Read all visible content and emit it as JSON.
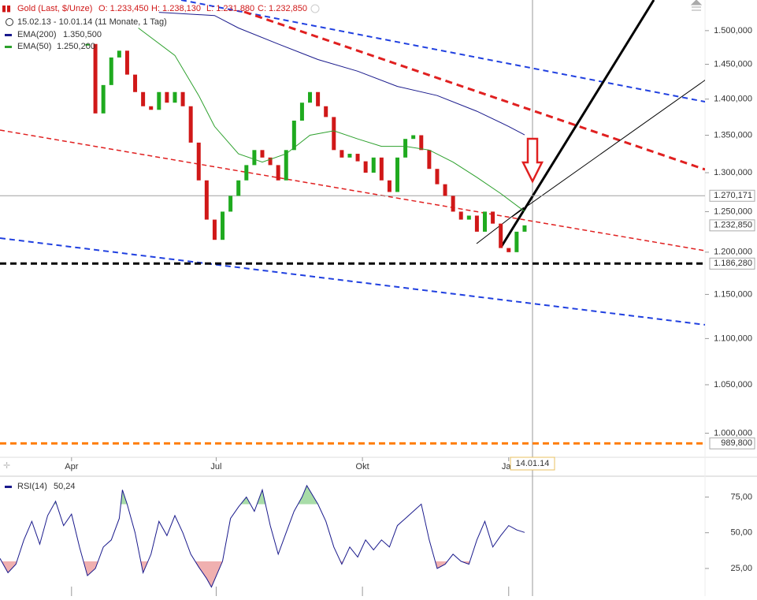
{
  "chart_data": [
    {
      "type": "line",
      "ohlc_labels": [
        "O: 1.233,450",
        "H: 1.238,130",
        "L: 1.231,880",
        "C: 1.232,850"
      ],
      "period": "15.02.13 - 10.01.14 (11 Monate, 1 Tag)",
      "log_scale": true,
      "xlim": [
        0,
        443.5
      ],
      "xticks": [
        {
          "value": 45,
          "label": "Apr"
        },
        {
          "value": 136,
          "label": "Jul"
        },
        {
          "value": 228,
          "label": "Okt"
        },
        {
          "value": 320,
          "label": "Jan"
        }
      ],
      "ylim": [
        976,
        1547
      ],
      "yticks": [
        {
          "value": 1000,
          "label": "1.000,000"
        },
        {
          "value": 1050,
          "label": "1.050,000"
        },
        {
          "value": 1100,
          "label": "1.100,000"
        },
        {
          "value": 1150,
          "label": "1.150,000"
        },
        {
          "value": 1200,
          "label": "1.200,000"
        },
        {
          "value": 1250,
          "label": "1.250,000"
        },
        {
          "value": 1300,
          "label": "1.300,000"
        },
        {
          "value": 1350,
          "label": "1.350,000"
        },
        {
          "value": 1400,
          "label": "1.400,000"
        },
        {
          "value": 1450,
          "label": "1.450,000"
        },
        {
          "value": 1500,
          "label": "1.500,000"
        }
      ],
      "series": [
        {
          "name": "Gold (Last, $/Unze)",
          "color": "#d01818",
          "up_color": "#1faa1f",
          "x": [
            55,
            60,
            65,
            70,
            75,
            80,
            85,
            90,
            95,
            100,
            105,
            110,
            115,
            120,
            125,
            130,
            135,
            140,
            145,
            150,
            155,
            160,
            165,
            170,
            175,
            180,
            185,
            190,
            195,
            200,
            205,
            210,
            215,
            220,
            225,
            230,
            235,
            240,
            245,
            250,
            255,
            260,
            265,
            270,
            275,
            280,
            285,
            290,
            295,
            300,
            305,
            310,
            315,
            320,
            325,
            330
          ],
          "values": [
            1480,
            1380,
            1420,
            1460,
            1470,
            1435,
            1410,
            1390,
            1385,
            1410,
            1395,
            1410,
            1390,
            1340,
            1290,
            1240,
            1215,
            1250,
            1270,
            1290,
            1310,
            1330,
            1320,
            1310,
            1290,
            1330,
            1370,
            1395,
            1410,
            1390,
            1375,
            1330,
            1320,
            1325,
            1315,
            1300,
            1320,
            1290,
            1275,
            1320,
            1345,
            1350,
            1330,
            1305,
            1285,
            1270,
            1250,
            1240,
            1245,
            1225,
            1250,
            1235,
            1205,
            1200,
            1225,
            1232.85
          ]
        },
        {
          "name": "EMA(200)",
          "color": "#1a1a8c",
          "value_label": "1.350,500",
          "x": [
            100,
            135,
            150,
            175,
            200,
            225,
            250,
            275,
            300,
            320,
            330
          ],
          "values": [
            1528,
            1523,
            1504,
            1480,
            1457,
            1440,
            1418,
            1405,
            1383,
            1362,
            1350.5
          ]
        },
        {
          "name": "EMA(50)",
          "color": "#2ca02c",
          "value_label": "1.250,200",
          "x": [
            87,
            110,
            125,
            135,
            150,
            165,
            180,
            195,
            210,
            225,
            240,
            255,
            270,
            285,
            300,
            315,
            330
          ],
          "values": [
            1504,
            1463,
            1405,
            1362,
            1325,
            1314,
            1325,
            1350,
            1356,
            1345,
            1335,
            1335,
            1330,
            1314,
            1294,
            1273,
            1250.2
          ]
        }
      ],
      "levels": [
        {
          "value": 1270.171,
          "label": "1.270,171",
          "color": "#a0a0a0",
          "style": "solid"
        },
        {
          "value": 1232.85,
          "label": "1.232,850",
          "color": "#a0a0a0",
          "style": "none"
        },
        {
          "value": 1186.28,
          "label": "1.186,280",
          "color": "#000000",
          "style": "dashed"
        },
        {
          "value": 989.8,
          "label": "989,800",
          "color": "#ff7f0e",
          "style": "dashed"
        }
      ],
      "cursor_label": "14.01.14"
    },
    {
      "type": "line",
      "ylim": [
        9,
        89
      ],
      "yticks": [
        {
          "value": 25,
          "label": "25,00"
        },
        {
          "value": 50,
          "label": "50,00"
        },
        {
          "value": 75,
          "label": "75,00"
        }
      ],
      "overbought": 70,
      "oversold": 30,
      "series": [
        {
          "name": "RSI(14)",
          "color": "#1a1a8c",
          "value_label": "50,24",
          "overbought_color": "#a8dca8",
          "oversold_color": "#f0b0b0",
          "x": [
            0,
            5,
            10,
            15,
            20,
            25,
            30,
            35,
            40,
            45,
            50,
            55,
            60,
            65,
            70,
            75,
            77,
            80,
            85,
            90,
            95,
            100,
            105,
            110,
            115,
            120,
            125,
            130,
            133,
            140,
            145,
            150,
            155,
            160,
            165,
            170,
            175,
            180,
            185,
            190,
            193,
            200,
            205,
            210,
            215,
            220,
            225,
            230,
            235,
            240,
            245,
            250,
            255,
            260,
            265,
            270,
            275,
            280,
            285,
            290,
            295,
            300,
            305,
            310,
            315,
            320,
            325,
            330
          ],
          "values": [
            32,
            22,
            28,
            45,
            58,
            42,
            62,
            72,
            55,
            63,
            40,
            20,
            25,
            40,
            45,
            60,
            80,
            70,
            50,
            22,
            35,
            58,
            48,
            62,
            50,
            35,
            26,
            18,
            12,
            30,
            60,
            68,
            75,
            65,
            80,
            55,
            35,
            50,
            65,
            75,
            83,
            70,
            58,
            40,
            28,
            40,
            33,
            45,
            38,
            45,
            40,
            55,
            60,
            65,
            70,
            45,
            25,
            28,
            35,
            30,
            28,
            45,
            58,
            40,
            48,
            55,
            52,
            50.24
          ]
        }
      ]
    }
  ]
}
